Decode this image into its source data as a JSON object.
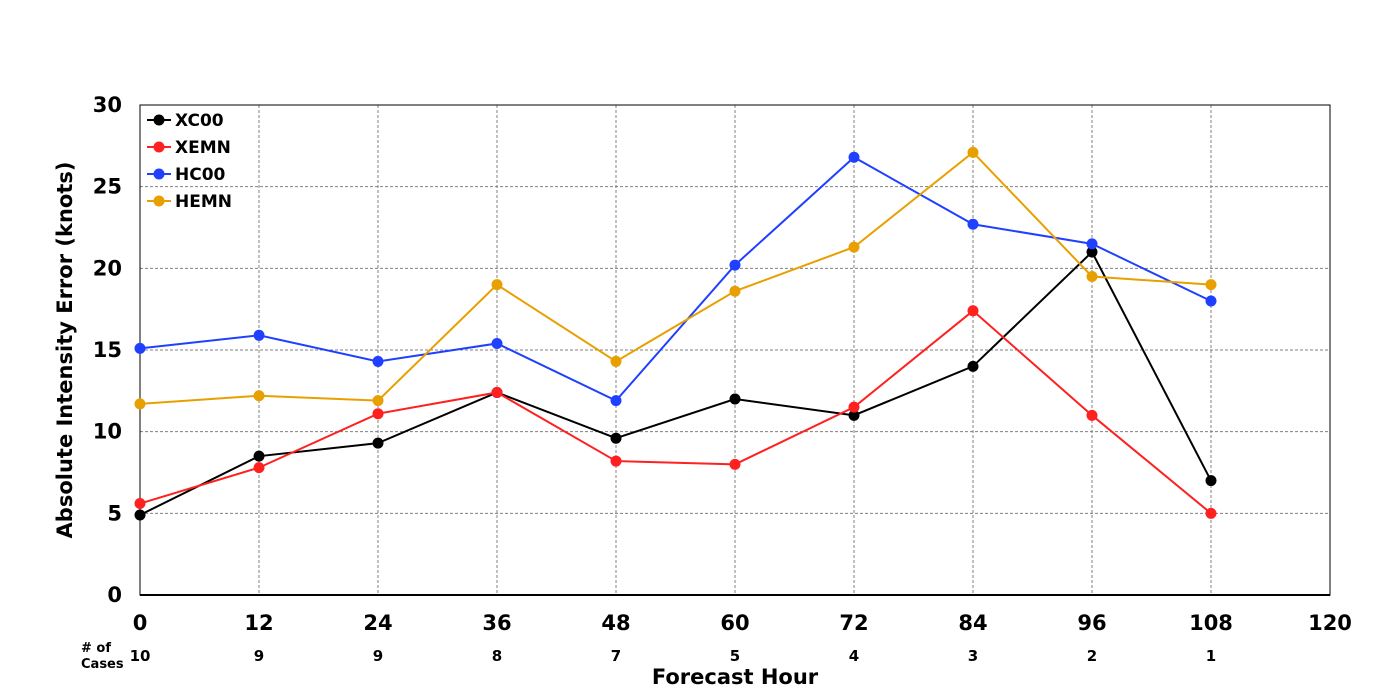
{
  "chart_data": {
    "type": "line",
    "xlabel": "Forecast Hour",
    "ylabel": "Absolute Intensity Error (knots)",
    "xlim": [
      0,
      120
    ],
    "ylim": [
      0,
      30
    ],
    "x_ticks": [
      0,
      12,
      24,
      36,
      48,
      60,
      72,
      84,
      96,
      108,
      120
    ],
    "y_ticks": [
      0,
      5,
      10,
      15,
      20,
      25,
      30
    ],
    "grid": true,
    "legend_position": "top-left",
    "x": [
      0,
      12,
      24,
      36,
      48,
      60,
      72,
      84,
      96,
      108
    ],
    "series": [
      {
        "name": "XC00",
        "color": "#000000",
        "values": [
          4.9,
          8.5,
          9.3,
          12.4,
          9.6,
          12.0,
          11.0,
          14.0,
          21.0,
          7.0
        ]
      },
      {
        "name": "XEMN",
        "color": "#ff2020",
        "values": [
          5.6,
          7.8,
          11.1,
          12.4,
          8.2,
          8.0,
          11.5,
          17.4,
          11.0,
          5.0
        ]
      },
      {
        "name": "HC00",
        "color": "#2040ff",
        "values": [
          15.1,
          15.9,
          14.3,
          15.4,
          11.9,
          20.2,
          26.8,
          22.7,
          21.5,
          18.0
        ]
      },
      {
        "name": "HEMN",
        "color": "#e8a000",
        "values": [
          11.7,
          12.2,
          11.9,
          19.0,
          14.3,
          18.6,
          21.3,
          27.1,
          19.5,
          19.0
        ]
      }
    ],
    "cases_label": [
      "# of",
      "Cases"
    ],
    "cases": [
      "10",
      "9",
      "9",
      "8",
      "7",
      "5",
      "4",
      "3",
      "2",
      "1"
    ]
  }
}
